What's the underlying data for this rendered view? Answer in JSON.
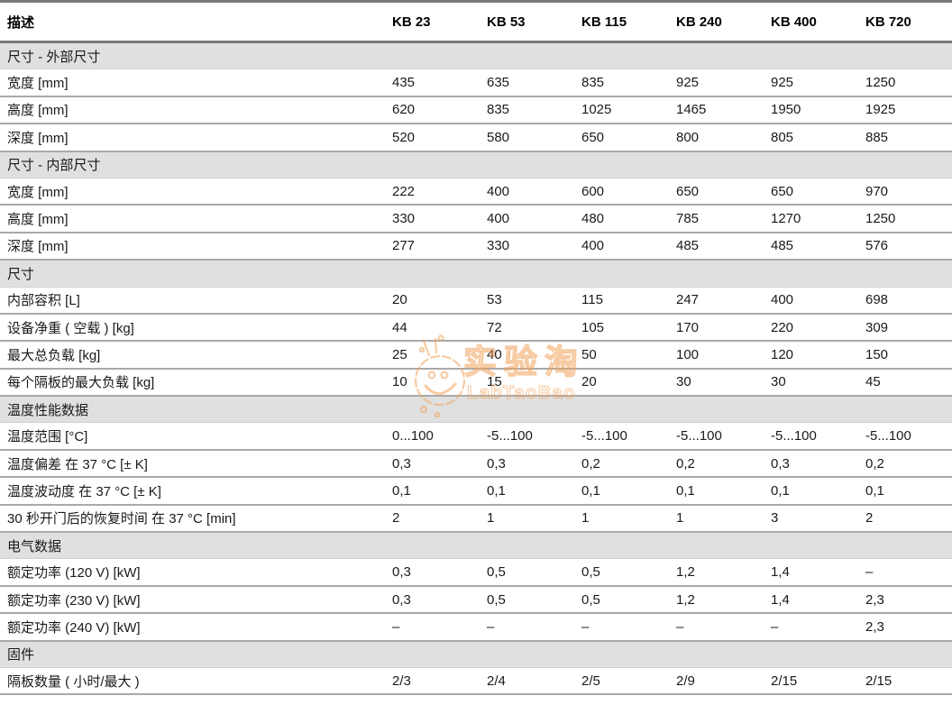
{
  "watermark": {
    "logo": "flask-smiley-logo",
    "text_cn": "实验淘",
    "text_en": "LabTaoBao",
    "color": "#f2a259"
  },
  "table": {
    "header": [
      "描述",
      "KB 23",
      "KB 53",
      "KB 115",
      "KB 240",
      "KB 400",
      "KB 720"
    ],
    "sections": [
      {
        "title": "尺寸 - 外部尺寸",
        "rows": [
          {
            "label": "宽度 [mm]",
            "values": [
              "435",
              "635",
              "835",
              "925",
              "925",
              "1250"
            ]
          },
          {
            "label": "高度 [mm]",
            "values": [
              "620",
              "835",
              "1025",
              "1465",
              "1950",
              "1925"
            ]
          },
          {
            "label": "深度 [mm]",
            "values": [
              "520",
              "580",
              "650",
              "800",
              "805",
              "885"
            ]
          }
        ]
      },
      {
        "title": "尺寸 - 内部尺寸",
        "rows": [
          {
            "label": "宽度 [mm]",
            "values": [
              "222",
              "400",
              "600",
              "650",
              "650",
              "970"
            ]
          },
          {
            "label": "高度 [mm]",
            "values": [
              "330",
              "400",
              "480",
              "785",
              "1270",
              "1250"
            ]
          },
          {
            "label": "深度 [mm]",
            "values": [
              "277",
              "330",
              "400",
              "485",
              "485",
              "576"
            ]
          }
        ]
      },
      {
        "title": "尺寸",
        "rows": [
          {
            "label": "内部容积 [L]",
            "values": [
              "20",
              "53",
              "115",
              "247",
              "400",
              "698"
            ]
          },
          {
            "label": "设备净重 ( 空载 )  [kg]",
            "values": [
              "44",
              "72",
              "105",
              "170",
              "220",
              "309"
            ]
          },
          {
            "label": "最大总负载 [kg]",
            "values": [
              "25",
              "40",
              "50",
              "100",
              "120",
              "150"
            ]
          },
          {
            "label": "每个隔板的最大负载 [kg]",
            "values": [
              "10",
              "15",
              "20",
              "30",
              "30",
              "45"
            ]
          }
        ]
      },
      {
        "title": "温度性能数据",
        "rows": [
          {
            "label": "温度范围 [°C]",
            "values": [
              "0...100",
              "-5...100",
              "-5...100",
              "-5...100",
              "-5...100",
              "-5...100"
            ]
          },
          {
            "label": "温度偏差 在 37 °C [± K]",
            "values": [
              "0,3",
              "0,3",
              "0,2",
              "0,2",
              "0,3",
              "0,2"
            ]
          },
          {
            "label": "温度波动度 在 37 °C [± K]",
            "values": [
              "0,1",
              "0,1",
              "0,1",
              "0,1",
              "0,1",
              "0,1"
            ]
          },
          {
            "label": "30 秒开门后的恢复时间 在 37 °C [min]",
            "values": [
              "2",
              "1",
              "1",
              "1",
              "3",
              "2"
            ]
          }
        ]
      },
      {
        "title": "电气数据",
        "rows": [
          {
            "label": "额定功率 (120 V) [kW]",
            "values": [
              "0,3",
              "0,5",
              "0,5",
              "1,2",
              "1,4",
              "–"
            ]
          },
          {
            "label": "额定功率 (230 V) [kW]",
            "values": [
              "0,3",
              "0,5",
              "0,5",
              "1,2",
              "1,4",
              "2,3"
            ]
          },
          {
            "label": "额定功率 (240 V) [kW]",
            "values": [
              "–",
              "–",
              "–",
              "–",
              "–",
              "2,3"
            ]
          }
        ]
      },
      {
        "title": "固件",
        "rows": [
          {
            "label": "隔板数量 ( 小时/最大 )",
            "values": [
              "2/3",
              "2/4",
              "2/5",
              "2/9",
              "2/15",
              "2/15"
            ]
          }
        ]
      }
    ]
  }
}
